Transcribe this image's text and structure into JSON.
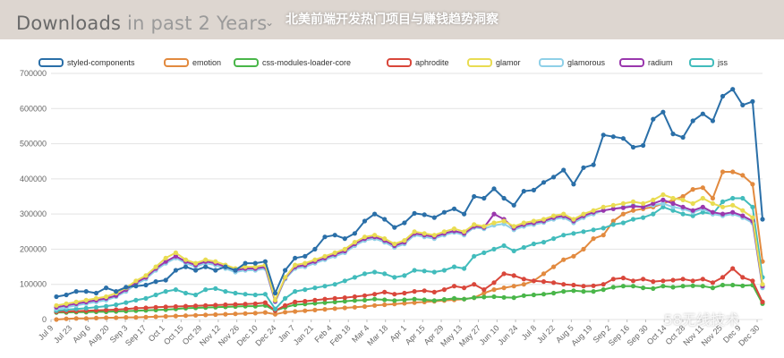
{
  "header": {
    "chart_title_bold": "Downloads",
    "chart_title_light": "in past",
    "chart_title_range": "2 Years",
    "overlay_title": "北美前端开发热门项目与赚钱趋势洞察",
    "watermark": "58无线技术"
  },
  "colors": {
    "styled-components": "#2a6fa8",
    "emotion": "#e28a3f",
    "css-modules-loader-core": "#49b649",
    "aphrodite": "#d9473b",
    "glamor": "#e9dc52",
    "glamorous": "#8fd0e8",
    "radium": "#9a37ad",
    "jss": "#42bcbc"
  },
  "chart_data": {
    "type": "line",
    "title": "Downloads in past 2 Years",
    "xlabel": "",
    "ylabel": "",
    "ylim": [
      0,
      700000
    ],
    "yticks": [
      0,
      100000,
      200000,
      300000,
      400000,
      500000,
      600000,
      700000
    ],
    "ytick_labels": [
      "0",
      "100000",
      "200000",
      "300000",
      "400000",
      "500000",
      "600000",
      "700000"
    ],
    "xticks": [
      "Jul 9",
      "Jul 23",
      "Aug 6",
      "Aug 20",
      "Sep 3",
      "Sep 17",
      "Oct 1",
      "Oct 15",
      "Oct 29",
      "Nov 12",
      "Nov 26",
      "Dec 10",
      "Dec 24",
      "Jan 7",
      "Jan 21",
      "Feb 4",
      "Feb 18",
      "Mar 4",
      "Mar 18",
      "Apr 1",
      "Apr 15",
      "Apr 29",
      "May 13",
      "May 27",
      "Jun 10",
      "Jun 24",
      "Jul 8",
      "Jul 22",
      "Aug 5",
      "Aug 19",
      "Sep 2",
      "Sep 16",
      "Sep 30",
      "Oct 14",
      "Oct 28",
      "Nov 11",
      "Nov 25",
      "Dec 9",
      "Dec 30"
    ],
    "grid": true,
    "legend_position": "top",
    "series": [
      {
        "name": "styled-components",
        "values": [
          65000,
          70000,
          80000,
          80000,
          75000,
          90000,
          80000,
          92000,
          95000,
          98000,
          108000,
          112000,
          140000,
          150000,
          140000,
          150000,
          140000,
          150000,
          140000,
          160000,
          160000,
          165000,
          75000,
          140000,
          175000,
          180000,
          200000,
          235000,
          240000,
          230000,
          245000,
          280000,
          300000,
          285000,
          262000,
          275000,
          302000,
          298000,
          290000,
          305000,
          315000,
          300000,
          350000,
          345000,
          372000,
          345000,
          325000,
          365000,
          368000,
          390000,
          405000,
          425000,
          385000,
          432000,
          440000,
          525000,
          520000,
          515000,
          490000,
          495000,
          570000,
          590000,
          528000,
          518000,
          565000,
          585000,
          565000,
          635000,
          655000,
          610000,
          620000,
          285000
        ]
      },
      {
        "name": "emotion",
        "values": [
          0,
          2000,
          3000,
          3000,
          4000,
          5000,
          5000,
          6000,
          6000,
          7000,
          8000,
          9000,
          10000,
          11000,
          12000,
          13000,
          14000,
          15000,
          16000,
          17000,
          18000,
          20000,
          15000,
          21000,
          23000,
          25000,
          27000,
          29000,
          31000,
          33000,
          35000,
          37000,
          40000,
          42000,
          44000,
          46000,
          48000,
          50000,
          52000,
          54000,
          56000,
          58000,
          62000,
          75000,
          85000,
          90000,
          95000,
          100000,
          110000,
          130000,
          150000,
          170000,
          180000,
          200000,
          230000,
          240000,
          280000,
          300000,
          310000,
          315000,
          320000,
          330000,
          340000,
          350000,
          370000,
          375000,
          345000,
          420000,
          420000,
          410000,
          385000,
          165000
        ]
      },
      {
        "name": "css-modules-loader-core",
        "values": [
          20000,
          20000,
          21000,
          21000,
          22000,
          22000,
          23000,
          24000,
          25000,
          26000,
          27000,
          28000,
          30000,
          32000,
          33000,
          34000,
          35000,
          36000,
          37000,
          38000,
          38000,
          40000,
          25000,
          35000,
          42000,
          44000,
          46000,
          48000,
          50000,
          52000,
          54000,
          55000,
          58000,
          56000,
          54000,
          56000,
          58000,
          56000,
          54000,
          57000,
          60000,
          58000,
          62000,
          64000,
          65000,
          63000,
          62000,
          68000,
          70000,
          72000,
          75000,
          80000,
          82000,
          80000,
          80000,
          85000,
          92000,
          95000,
          95000,
          90000,
          88000,
          95000,
          92000,
          95000,
          96000,
          95000,
          90000,
          98000,
          98000,
          96000,
          98000,
          45000
        ]
      },
      {
        "name": "aphrodite",
        "values": [
          22000,
          23000,
          24000,
          25000,
          26000,
          27000,
          28000,
          30000,
          32000,
          33000,
          35000,
          36000,
          37000,
          38000,
          39000,
          40000,
          41000,
          42000,
          43000,
          44000,
          45000,
          48000,
          25000,
          40000,
          50000,
          52000,
          55000,
          58000,
          60000,
          62000,
          65000,
          68000,
          72000,
          78000,
          72000,
          75000,
          80000,
          82000,
          78000,
          85000,
          95000,
          90000,
          100000,
          85000,
          105000,
          130000,
          125000,
          115000,
          110000,
          108000,
          105000,
          100000,
          98000,
          95000,
          96000,
          100000,
          115000,
          118000,
          110000,
          115000,
          108000,
          110000,
          112000,
          115000,
          110000,
          115000,
          105000,
          120000,
          145000,
          120000,
          110000,
          50000
        ]
      },
      {
        "name": "glamor",
        "values": [
          40000,
          45000,
          50000,
          55000,
          60000,
          65000,
          75000,
          90000,
          110000,
          125000,
          150000,
          175000,
          190000,
          170000,
          160000,
          170000,
          165000,
          155000,
          145000,
          150000,
          150000,
          155000,
          55000,
          120000,
          155000,
          160000,
          170000,
          180000,
          190000,
          200000,
          220000,
          235000,
          240000,
          230000,
          215000,
          225000,
          250000,
          245000,
          240000,
          250000,
          258000,
          250000,
          270000,
          265000,
          275000,
          280000,
          265000,
          275000,
          280000,
          285000,
          295000,
          300000,
          285000,
          300000,
          310000,
          320000,
          325000,
          330000,
          335000,
          330000,
          340000,
          355000,
          345000,
          340000,
          330000,
          345000,
          330000,
          320000,
          325000,
          310000,
          290000,
          100000
        ]
      },
      {
        "name": "glamorous",
        "values": [
          30000,
          35000,
          40000,
          45000,
          50000,
          55000,
          65000,
          80000,
          100000,
          115000,
          140000,
          160000,
          175000,
          160000,
          150000,
          160000,
          155000,
          145000,
          135000,
          140000,
          140000,
          145000,
          50000,
          115000,
          145000,
          150000,
          160000,
          170000,
          180000,
          190000,
          210000,
          225000,
          230000,
          220000,
          205000,
          215000,
          240000,
          235000,
          230000,
          240000,
          248000,
          240000,
          262000,
          258000,
          268000,
          272000,
          255000,
          265000,
          270000,
          276000,
          285000,
          290000,
          275000,
          290000,
          300000,
          310000,
          315000,
          320000,
          325000,
          320000,
          325000,
          330000,
          320000,
          315000,
          305000,
          315000,
          300000,
          295000,
          300000,
          290000,
          275000,
          90000
        ]
      },
      {
        "name": "radium",
        "values": [
          35000,
          40000,
          45000,
          50000,
          55000,
          60000,
          68000,
          85000,
          105000,
          120000,
          145000,
          165000,
          180000,
          165000,
          155000,
          165000,
          160000,
          150000,
          140000,
          145000,
          145000,
          150000,
          52000,
          118000,
          150000,
          155000,
          165000,
          175000,
          185000,
          195000,
          215000,
          230000,
          235000,
          225000,
          210000,
          220000,
          245000,
          240000,
          235000,
          245000,
          252000,
          245000,
          265000,
          262000,
          300000,
          285000,
          260000,
          270000,
          275000,
          280000,
          290000,
          295000,
          280000,
          295000,
          305000,
          310000,
          315000,
          318000,
          322000,
          320000,
          330000,
          340000,
          330000,
          320000,
          310000,
          320000,
          305000,
          300000,
          305000,
          295000,
          280000,
          95000
        ]
      },
      {
        "name": "jss",
        "values": [
          25000,
          28000,
          30000,
          32000,
          35000,
          38000,
          42000,
          48000,
          55000,
          60000,
          70000,
          80000,
          85000,
          75000,
          70000,
          85000,
          88000,
          80000,
          75000,
          72000,
          70000,
          72000,
          30000,
          60000,
          80000,
          85000,
          90000,
          95000,
          100000,
          110000,
          120000,
          130000,
          135000,
          130000,
          120000,
          125000,
          140000,
          138000,
          135000,
          140000,
          150000,
          145000,
          180000,
          190000,
          200000,
          210000,
          195000,
          205000,
          215000,
          220000,
          230000,
          240000,
          245000,
          250000,
          255000,
          260000,
          270000,
          275000,
          285000,
          290000,
          300000,
          320000,
          310000,
          300000,
          295000,
          305000,
          300000,
          335000,
          345000,
          345000,
          320000,
          120000
        ]
      }
    ]
  }
}
